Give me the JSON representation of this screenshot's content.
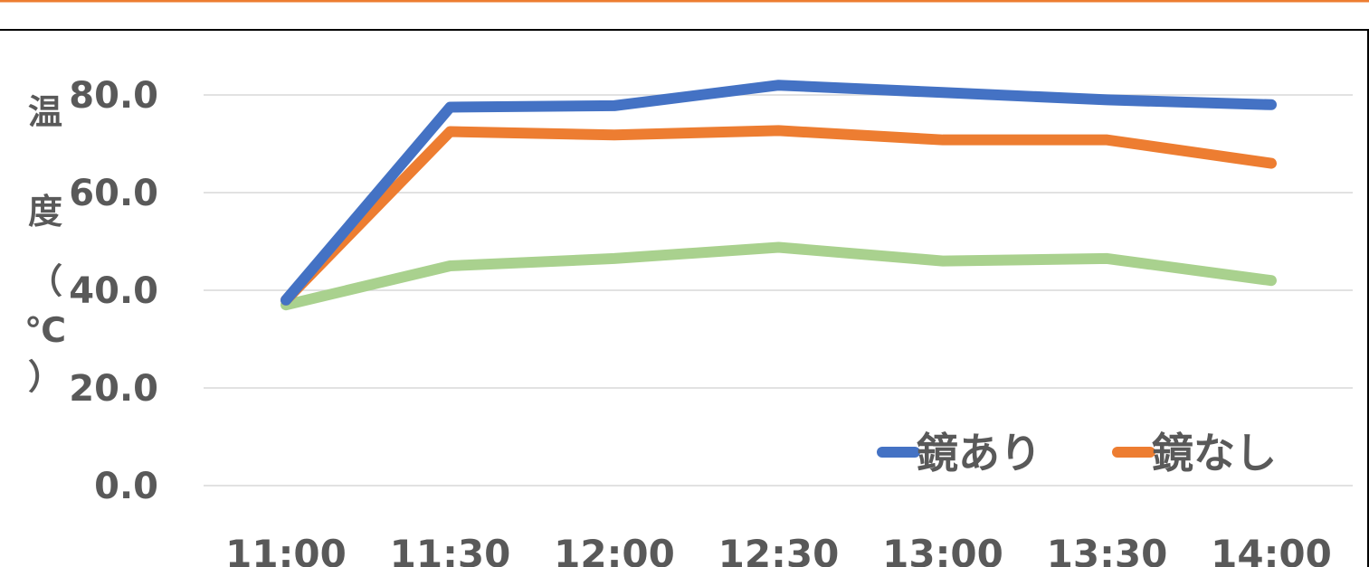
{
  "chart_data": {
    "type": "line",
    "title": "",
    "xlabel": "",
    "ylabel": "温度（℃）",
    "categories": [
      "11:00",
      "11:30",
      "12:00",
      "12:30",
      "13:00",
      "13:30",
      "14:00"
    ],
    "yticks": [
      "0.0",
      "20.0",
      "40.0",
      "60.0",
      "80.0"
    ],
    "ylim": [
      0,
      80
    ],
    "grid": true,
    "legend_position": "bottom-right",
    "series": [
      {
        "name": "鏡あり",
        "color": "#4472c4",
        "values": [
          38.0,
          77.5,
          77.8,
          82.0,
          80.5,
          79.0,
          78.0
        ],
        "in_legend": true
      },
      {
        "name": "鏡なし",
        "color": "#ed7d31",
        "values": [
          38.0,
          72.5,
          71.8,
          72.7,
          70.8,
          70.8,
          66.0
        ],
        "in_legend": true
      },
      {
        "name": "",
        "color": "#a9d18e",
        "values": [
          37.0,
          45.0,
          46.5,
          48.8,
          46.0,
          46.5,
          42.0
        ],
        "in_legend": false
      }
    ],
    "accent_color": "#ed7d31",
    "border_color": "#000000",
    "grid_color": "#d9d9d9",
    "text_color": "#595959"
  }
}
